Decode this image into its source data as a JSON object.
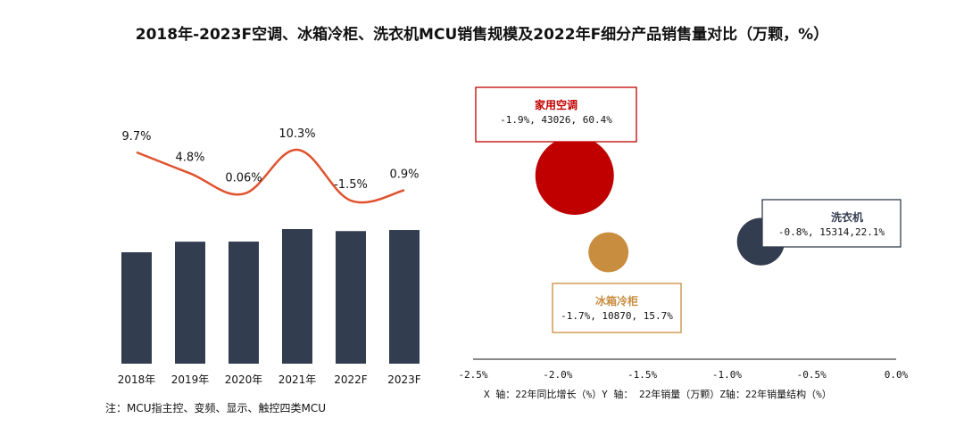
{
  "title": "2018年-2023F空调、冰箱冷柜、洗衣机MCU销售规模及2022年F细分产品销售量对比（万颗，%）",
  "note": "注：MCU指主控、变频、显示、触控四类MCU",
  "colors": {
    "bar": "#323d4f",
    "line": "#e0522e",
    "ac": "#c00000",
    "fridge": "#c98d40",
    "washer": "#323d4f"
  },
  "chart_data": [
    {
      "type": "bar",
      "categories": [
        "2018年",
        "2019年",
        "2020年",
        "2021年",
        "2022F",
        "2023F"
      ],
      "series": [
        {
          "values": [
            61000,
            66800,
            66840,
            73700,
            72600,
            73200
          ]
        },
        {
          "type": "line",
          "values": [
            9.7,
            4.8,
            0.06,
            10.3,
            -1.5,
            0.9
          ]
        }
      ],
      "growth_labels": [
        "9.7%",
        "4.8%",
        "0.06%",
        "10.3%",
        "-1.5%",
        "0.9%"
      ]
    },
    {
      "type": "scatter",
      "x_ticks": [
        "-2.5%",
        "-2.0%",
        "-1.5%",
        "-1.0%",
        "-0.5%",
        "0.0%"
      ],
      "xlim": [
        -2.5,
        0.0
      ],
      "axis_caption": "X 轴：22年同比增长（%）Y 轴： 22年销量（万颗）Z轴：22年销量结构（%）",
      "points": [
        {
          "name": "家用空调",
          "label": "-1.9%, 43026, 60.4%",
          "x": -1.9,
          "y": 43026,
          "z": 60.4
        },
        {
          "name": "冰箱冷柜",
          "label": "-1.7%, 10870, 15.7%",
          "x": -1.7,
          "y": 10870,
          "z": 15.7
        },
        {
          "name": "洗衣机",
          "label": "-0.8%, 15314,22.1%",
          "x": -0.8,
          "y": 15314,
          "z": 22.1
        }
      ]
    }
  ]
}
